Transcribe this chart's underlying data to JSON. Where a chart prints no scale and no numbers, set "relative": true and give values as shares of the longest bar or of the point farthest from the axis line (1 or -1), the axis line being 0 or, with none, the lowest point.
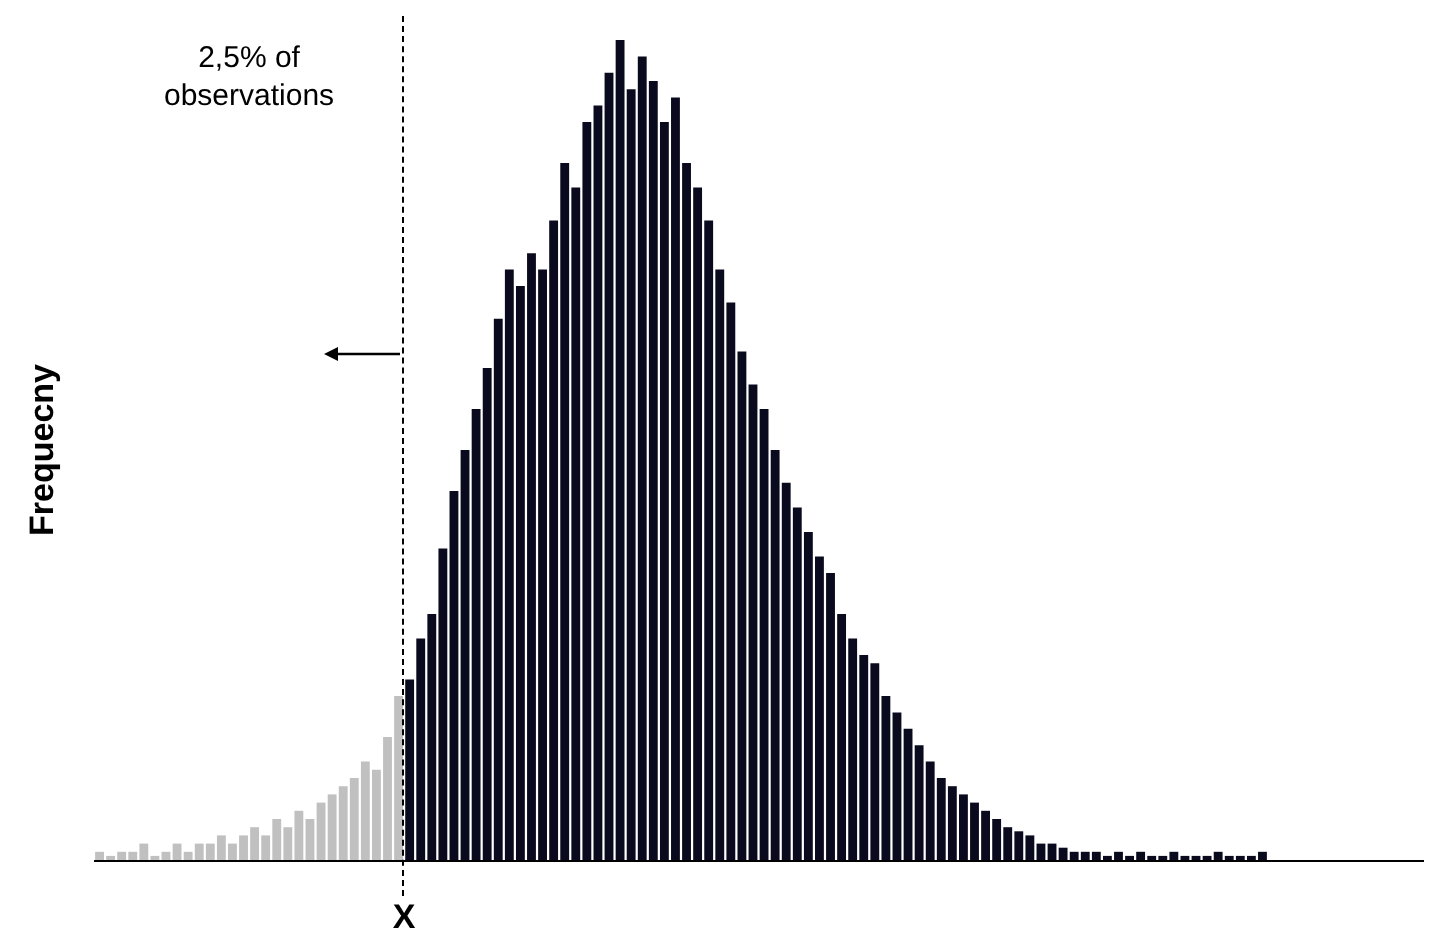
{
  "chart_data": {
    "type": "bar",
    "relative": true,
    "ylabel": "Frequecny",
    "grid": false,
    "legend": false,
    "categories": [
      null,
      null,
      null,
      null,
      null,
      null,
      null,
      null,
      null,
      null,
      null,
      null,
      null,
      null,
      null,
      null,
      null,
      null,
      null,
      null,
      null,
      null,
      null,
      null,
      null,
      null,
      null,
      null,
      null,
      null,
      null,
      null,
      null,
      null,
      null,
      null,
      null,
      null,
      null,
      null,
      null,
      null,
      null,
      null,
      null,
      null,
      null,
      null,
      null,
      null,
      null,
      null,
      null,
      null,
      null,
      null,
      null,
      null,
      null,
      null,
      null,
      null,
      null,
      null,
      null,
      null,
      null,
      null,
      null,
      null,
      null,
      null,
      null,
      null,
      null,
      null,
      null,
      null,
      null,
      null,
      null,
      null,
      null,
      null,
      null,
      null,
      null,
      null,
      null,
      null,
      null,
      null,
      null,
      null,
      null,
      null,
      null,
      null,
      null,
      null,
      null,
      null,
      null,
      null,
      null,
      null
    ],
    "values": [
      0.01,
      0.005,
      0.01,
      0.01,
      0.02,
      0.005,
      0.01,
      0.02,
      0.01,
      0.02,
      0.02,
      0.03,
      0.02,
      0.03,
      0.04,
      0.03,
      0.05,
      0.04,
      0.06,
      0.05,
      0.07,
      0.08,
      0.09,
      0.1,
      0.12,
      0.11,
      0.15,
      0.2,
      0.22,
      0.27,
      0.3,
      0.38,
      0.45,
      0.5,
      0.55,
      0.6,
      0.66,
      0.72,
      0.7,
      0.74,
      0.72,
      0.78,
      0.85,
      0.82,
      0.9,
      0.92,
      0.96,
      1,
      0.94,
      0.98,
      0.95,
      0.9,
      0.93,
      0.85,
      0.82,
      0.78,
      0.72,
      0.68,
      0.62,
      0.58,
      0.55,
      0.5,
      0.46,
      0.43,
      0.4,
      0.37,
      0.35,
      0.3,
      0.27,
      0.25,
      0.24,
      0.2,
      0.18,
      0.16,
      0.14,
      0.12,
      0.1,
      0.09,
      0.08,
      0.07,
      0.06,
      0.05,
      0.04,
      0.035,
      0.03,
      0.02,
      0.02,
      0.015,
      0.01,
      0.01,
      0.01,
      0.005,
      0.01,
      0.005,
      0.01,
      0.005,
      0.005,
      0.01,
      0.005,
      0.005,
      0.005,
      0.01,
      0.005,
      0.005,
      0.005,
      0.01
    ],
    "colors": [
      "#c0c0c0",
      "#c0c0c0",
      "#c0c0c0",
      "#c0c0c0",
      "#c0c0c0",
      "#c0c0c0",
      "#c0c0c0",
      "#c0c0c0",
      "#c0c0c0",
      "#c0c0c0",
      "#c0c0c0",
      "#c0c0c0",
      "#c0c0c0",
      "#c0c0c0",
      "#c0c0c0",
      "#c0c0c0",
      "#c0c0c0",
      "#c0c0c0",
      "#c0c0c0",
      "#c0c0c0",
      "#c0c0c0",
      "#c0c0c0",
      "#c0c0c0",
      "#c0c0c0",
      "#c0c0c0",
      "#c0c0c0",
      "#c0c0c0",
      "#c0c0c0",
      "#0a0a1e",
      "#0a0a1e",
      "#0a0a1e",
      "#0a0a1e",
      "#0a0a1e",
      "#0a0a1e",
      "#0a0a1e",
      "#0a0a1e",
      "#0a0a1e",
      "#0a0a1e",
      "#0a0a1e",
      "#0a0a1e",
      "#0a0a1e",
      "#0a0a1e",
      "#0a0a1e",
      "#0a0a1e",
      "#0a0a1e",
      "#0a0a1e",
      "#0a0a1e",
      "#0a0a1e",
      "#0a0a1e",
      "#0a0a1e",
      "#0a0a1e",
      "#0a0a1e",
      "#0a0a1e",
      "#0a0a1e",
      "#0a0a1e",
      "#0a0a1e",
      "#0a0a1e",
      "#0a0a1e",
      "#0a0a1e",
      "#0a0a1e",
      "#0a0a1e",
      "#0a0a1e",
      "#0a0a1e",
      "#0a0a1e",
      "#0a0a1e",
      "#0a0a1e",
      "#0a0a1e",
      "#0a0a1e",
      "#0a0a1e",
      "#0a0a1e",
      "#0a0a1e",
      "#0a0a1e",
      "#0a0a1e",
      "#0a0a1e",
      "#0a0a1e",
      "#0a0a1e",
      "#0a0a1e",
      "#0a0a1e",
      "#0a0a1e",
      "#0a0a1e",
      "#0a0a1e",
      "#0a0a1e",
      "#0a0a1e",
      "#0a0a1e",
      "#0a0a1e",
      "#0a0a1e",
      "#0a0a1e",
      "#0a0a1e",
      "#0a0a1e",
      "#0a0a1e",
      "#0a0a1e",
      "#0a0a1e",
      "#0a0a1e",
      "#0a0a1e",
      "#0a0a1e",
      "#0a0a1e",
      "#0a0a1e",
      "#0a0a1e",
      "#0a0a1e",
      "#0a0a1e",
      "#0a0a1e",
      "#0a0a1e",
      "#0a0a1e",
      "#0a0a1e",
      "#0a0a1e",
      "#0a0a1e"
    ],
    "annotations": [
      "2,5% of observations",
      "X"
    ]
  }
}
